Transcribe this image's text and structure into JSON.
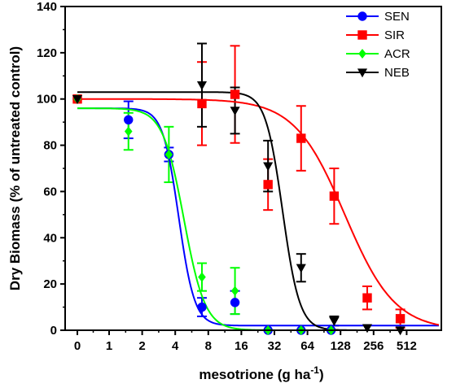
{
  "chart_data": {
    "type": "scatter",
    "title": "",
    "xlabel": "mesotrione (g ha",
    "xlabel_sup": "-1",
    "xlabel_end": ")",
    "ylabel": "Dry Biomass (% of untreated control)",
    "x_scale": "log2 with zero anchor",
    "x_ticks": [
      "0",
      "1",
      "2",
      "4",
      "8",
      "16",
      "32",
      "64",
      "128",
      "256",
      "512"
    ],
    "x_tick_values": [
      0,
      1,
      2,
      4,
      8,
      16,
      32,
      64,
      128,
      256,
      512
    ],
    "ylim": [
      0,
      140
    ],
    "y_ticks": [
      "0",
      "20",
      "40",
      "60",
      "80",
      "100",
      "120",
      "140"
    ],
    "legend_position": "top-right",
    "series": [
      {
        "name": "SEN",
        "color": "#0000ff",
        "marker": "circle",
        "points": [
          {
            "x": 0,
            "y": 100,
            "err": 0
          },
          {
            "x": 1.5,
            "y": 91,
            "err": 8
          },
          {
            "x": 3.5,
            "y": 76,
            "err": 3
          },
          {
            "x": 7,
            "y": 10,
            "err": 4
          },
          {
            "x": 14,
            "y": 12,
            "err": 5
          },
          {
            "x": 28,
            "y": 0,
            "err": 0
          },
          {
            "x": 56,
            "y": 0,
            "err": 0
          },
          {
            "x": 105,
            "y": 0,
            "err": 0
          }
        ],
        "fit": {
          "top": 96,
          "bottom": 2,
          "ec50": 4.3,
          "hill": 6
        }
      },
      {
        "name": "SIR",
        "color": "#ff0000",
        "marker": "square",
        "points": [
          {
            "x": 0,
            "y": 100,
            "err": 0
          },
          {
            "x": 7,
            "y": 98,
            "err": 18
          },
          {
            "x": 14,
            "y": 102,
            "err": 21
          },
          {
            "x": 28,
            "y": 63,
            "err": 11
          },
          {
            "x": 56,
            "y": 83,
            "err": 14
          },
          {
            "x": 112,
            "y": 58,
            "err": 12
          },
          {
            "x": 224,
            "y": 14,
            "err": 5
          },
          {
            "x": 448,
            "y": 5,
            "err": 4
          }
        ],
        "fit": {
          "top": 100,
          "bottom": 0,
          "ec50": 140,
          "hill": 1.9
        }
      },
      {
        "name": "ACR",
        "color": "#00ff00",
        "marker": "diamond",
        "points": [
          {
            "x": 0,
            "y": 100,
            "err": 0
          },
          {
            "x": 1.5,
            "y": 86,
            "err": 8
          },
          {
            "x": 3.5,
            "y": 76,
            "err": 12
          },
          {
            "x": 7,
            "y": 23,
            "err": 6
          },
          {
            "x": 14,
            "y": 17,
            "err": 10
          },
          {
            "x": 28,
            "y": 0,
            "err": 0
          },
          {
            "x": 56,
            "y": 0,
            "err": 0
          },
          {
            "x": 105,
            "y": 0,
            "err": 0
          }
        ],
        "fit": {
          "top": 96,
          "bottom": 0,
          "ec50": 4.8,
          "hill": 4.5
        }
      },
      {
        "name": "NEB",
        "color": "#000000",
        "marker": "triangle-down",
        "points": [
          {
            "x": 0,
            "y": 100,
            "err": 0
          },
          {
            "x": 7,
            "y": 106,
            "err": 18
          },
          {
            "x": 14,
            "y": 95,
            "err": 10
          },
          {
            "x": 28,
            "y": 71,
            "err": 11
          },
          {
            "x": 56,
            "y": 27,
            "err": 6
          },
          {
            "x": 112,
            "y": 4,
            "err": 2
          },
          {
            "x": 224,
            "y": 1,
            "err": 0
          },
          {
            "x": 448,
            "y": 0,
            "err": 0
          }
        ],
        "fit": {
          "top": 103,
          "bottom": 0,
          "ec50": 38,
          "hill": 5.6
        }
      }
    ]
  }
}
